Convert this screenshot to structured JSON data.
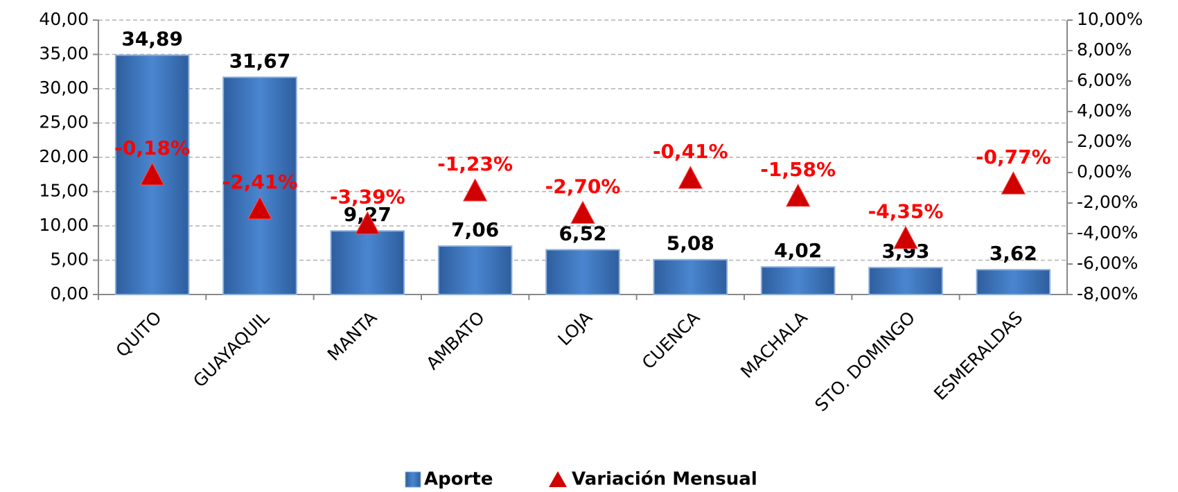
{
  "chart_data": {
    "type": "bar",
    "categories": [
      "QUITO",
      "GUAYAQUIL",
      "MANTA",
      "AMBATO",
      "LOJA",
      "CUENCA",
      "MACHALA",
      "STO. DOMINGO",
      "ESMERALDAS"
    ],
    "series": [
      {
        "name": "Aporte",
        "color": "#3f73b8",
        "values": [
          34.89,
          31.67,
          9.27,
          7.06,
          6.52,
          5.08,
          4.02,
          3.93,
          3.62
        ],
        "value_labels": [
          "34,89",
          "31,67",
          "9,27",
          "7,06",
          "6,52",
          "5,08",
          "4,02",
          "3,93",
          "3,62"
        ]
      },
      {
        "name": "Variación Mensual",
        "color": "#d00000",
        "axis": "y2",
        "values": [
          -0.18,
          -2.41,
          -3.39,
          -1.23,
          -2.7,
          -0.41,
          -1.58,
          -4.35,
          -0.77
        ],
        "value_labels": [
          "-0,18%",
          "-2,41%",
          "-3,39%",
          "-1,23%",
          "-2,70%",
          "-0,41%",
          "-1,58%",
          "-4,35%",
          "-0,77%"
        ]
      }
    ],
    "ylim": [
      0,
      40
    ],
    "yticks": [
      {
        "value": 0,
        "label": "0,00"
      },
      {
        "value": 5,
        "label": "5,00"
      },
      {
        "value": 10,
        "label": "10,00"
      },
      {
        "value": 15,
        "label": "15,00"
      },
      {
        "value": 20,
        "label": "20,00"
      },
      {
        "value": 25,
        "label": "25,00"
      },
      {
        "value": 30,
        "label": "30,00"
      },
      {
        "value": 35,
        "label": "35,00"
      },
      {
        "value": 40,
        "label": "40,00"
      }
    ],
    "y2lim": [
      -8,
      10
    ],
    "y2ticks": [
      {
        "value": -8,
        "label": "-8,00%"
      },
      {
        "value": -6,
        "label": "-6,00%"
      },
      {
        "value": -4,
        "label": "-4,00%"
      },
      {
        "value": -2,
        "label": "-2,00%"
      },
      {
        "value": 0,
        "label": "0,00%"
      },
      {
        "value": 2,
        "label": "2,00%"
      },
      {
        "value": 4,
        "label": "4,00%"
      },
      {
        "value": 6,
        "label": "6,00%"
      },
      {
        "value": 8,
        "label": "8,00%"
      },
      {
        "value": 10,
        "label": "10,00%"
      }
    ],
    "grid": true,
    "legend": "bottom"
  }
}
